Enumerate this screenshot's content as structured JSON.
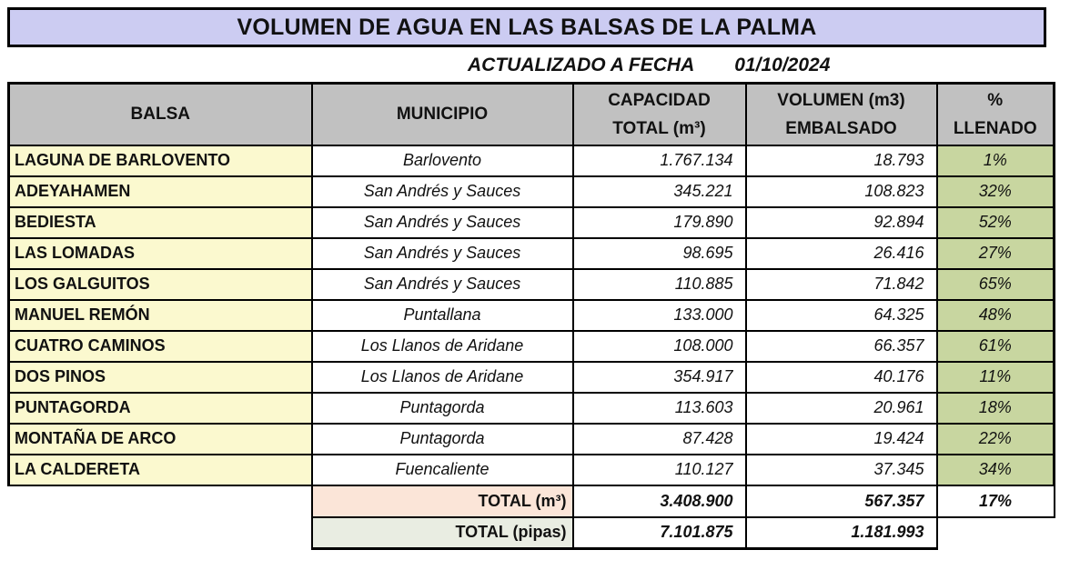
{
  "title": "VOLUMEN DE AGUA EN LAS BALSAS DE LA PALMA",
  "subtitle": {
    "label": "ACTUALIZADO A FECHA",
    "date": "01/10/2024"
  },
  "colors": {
    "title_bg": "#ccccf2",
    "header_bg": "#c1c1c1",
    "balsa_column_bg": "#fbf9cf",
    "pct_column_bg": "#c8d6a0",
    "total_m3_bg": "#fbe5d8",
    "total_pipas_bg": "#e9ede2",
    "border": "#000000"
  },
  "table": {
    "headers": {
      "balsa": "BALSA",
      "municipio": "MUNICIPIO",
      "capacidad_line1": "CAPACIDAD",
      "capacidad_line2": "TOTAL  (m³)",
      "volumen_line1": "VOLUMEN (m3)",
      "volumen_line2": "EMBALSADO",
      "pct_line1": "%",
      "pct_line2": "LLENADO"
    },
    "rows": [
      {
        "balsa": "LAGUNA DE BARLOVENTO",
        "municipio": "Barlovento",
        "capacidad": "1.767.134",
        "volumen": "18.793",
        "pct": "1%"
      },
      {
        "balsa": "ADEYAHAMEN",
        "municipio": "San Andrés y Sauces",
        "capacidad": "345.221",
        "volumen": "108.823",
        "pct": "32%"
      },
      {
        "balsa": "BEDIESTA",
        "municipio": "San Andrés y Sauces",
        "capacidad": "179.890",
        "volumen": "92.894",
        "pct": "52%"
      },
      {
        "balsa": "LAS LOMADAS",
        "municipio": "San Andrés y Sauces",
        "capacidad": "98.695",
        "volumen": "26.416",
        "pct": "27%"
      },
      {
        "balsa": "LOS GALGUITOS",
        "municipio": "San Andrés y Sauces",
        "capacidad": "110.885",
        "volumen": "71.842",
        "pct": "65%"
      },
      {
        "balsa": "MANUEL REMÓN",
        "municipio": "Puntallana",
        "capacidad": "133.000",
        "volumen": "64.325",
        "pct": "48%"
      },
      {
        "balsa": "CUATRO CAMINOS",
        "municipio": "Los Llanos de Aridane",
        "capacidad": "108.000",
        "volumen": "66.357",
        "pct": "61%"
      },
      {
        "balsa": "DOS PINOS",
        "municipio": "Los Llanos de Aridane",
        "capacidad": "354.917",
        "volumen": "40.176",
        "pct": "11%"
      },
      {
        "balsa": "PUNTAGORDA",
        "municipio": "Puntagorda",
        "capacidad": "113.603",
        "volumen": "20.961",
        "pct": "18%"
      },
      {
        "balsa": "MONTAÑA DE ARCO",
        "municipio": "Puntagorda",
        "capacidad": "87.428",
        "volumen": "19.424",
        "pct": "22%"
      },
      {
        "balsa": "LA CALDERETA",
        "municipio": "Fuencaliente",
        "capacidad": "110.127",
        "volumen": "37.345",
        "pct": "34%"
      }
    ],
    "totals": {
      "m3": {
        "label": "TOTAL (m³)",
        "capacidad": "3.408.900",
        "volumen": "567.357",
        "pct": "17%"
      },
      "pipas": {
        "label": "TOTAL (pipas)",
        "capacidad": "7.101.875",
        "volumen": "1.181.993"
      }
    }
  }
}
